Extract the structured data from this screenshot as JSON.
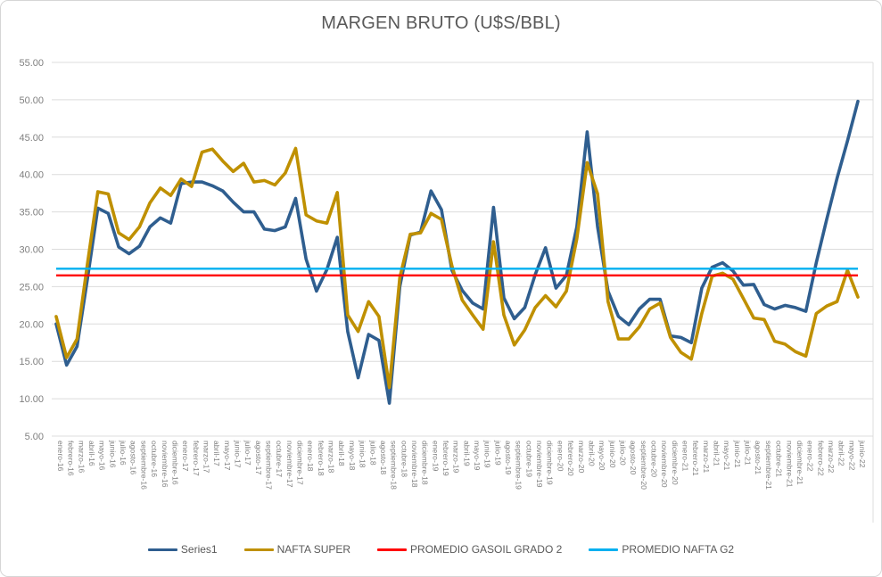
{
  "chart": {
    "title": "MARGEN BRUTO (U$S/BBL)"
  },
  "chart_data": {
    "type": "line",
    "title": "MARGEN BRUTO (U$S/BBL)",
    "xlabel": "",
    "ylabel": "",
    "ylim": [
      5,
      55
    ],
    "ytick_step": 5,
    "ytick_decimals": 2,
    "grid": "horizontal",
    "legend_position": "bottom",
    "axis_text_color": "#7f7f7f",
    "title_color": "#595959",
    "gridline_color": "#dcdcdc",
    "x": [
      "enero-16",
      "febrero-16",
      "marzo-16",
      "abril-16",
      "mayo-16",
      "junio-16",
      "julio-16",
      "agosto-16",
      "septiembre-16",
      "octubre-16",
      "noviembre-16",
      "diciembre-16",
      "enero-17",
      "febrero-17",
      "marzo-17",
      "abril-17",
      "mayo-17",
      "junio-17",
      "julio-17",
      "agosto-17",
      "septiembre-17",
      "octubre-17",
      "noviembre-17",
      "diciembre-17",
      "enero-18",
      "febrero-18",
      "marzo-18",
      "abril-18",
      "mayo-18",
      "junio-18",
      "julio-18",
      "agosto-18",
      "septiembre-18",
      "octubre-18",
      "noviembre-18",
      "diciembre-18",
      "enero-19",
      "febrero-19",
      "marzo-19",
      "abril-19",
      "mayo-19",
      "junio-19",
      "julio-19",
      "agosto-19",
      "septiembre-19",
      "octubre-19",
      "noviembre-19",
      "diciembre-19",
      "enero-20",
      "febrero-20",
      "marzo-20",
      "abril-20",
      "mayo-20",
      "junio-20",
      "julio-20",
      "agosto-20",
      "septiembre-20",
      "octubre-20",
      "noviembre-20",
      "diciembre-20",
      "enero-21",
      "febrero-21",
      "marzo-21",
      "abril-21",
      "mayo-21",
      "junio-21",
      "julio-21",
      "agosto-21",
      "septiembre-21",
      "octubre-21",
      "noviembre-21",
      "diciembre-21",
      "enero-22",
      "febrero-22",
      "marzo-22",
      "abril-22",
      "mayo-22",
      "junio-22"
    ],
    "series": [
      {
        "name": "Series1",
        "type": "line",
        "color": "#2f5e8f",
        "width": 3.6,
        "values": [
          20.0,
          14.5,
          17.0,
          26.0,
          35.5,
          34.8,
          30.3,
          29.4,
          30.4,
          33.0,
          34.2,
          33.5,
          38.8,
          39.0,
          39.0,
          38.5,
          37.8,
          36.3,
          35.0,
          35.0,
          32.7,
          32.5,
          33.0,
          36.8,
          28.7,
          24.4,
          27.3,
          31.6,
          19.0,
          12.8,
          18.6,
          17.8,
          9.4,
          25.0,
          31.9,
          32.3,
          37.8,
          35.3,
          27.2,
          24.5,
          22.8,
          22.0,
          35.6,
          23.5,
          20.7,
          22.2,
          26.6,
          30.2,
          24.8,
          26.5,
          33.0,
          45.7,
          33.0,
          24.4,
          21.0,
          19.9,
          22.0,
          23.3,
          23.3,
          18.4,
          18.2,
          17.5,
          24.8,
          27.6,
          28.2,
          27.1,
          25.2,
          25.3,
          22.6,
          22.0,
          22.5,
          22.2,
          21.7,
          28.2,
          34.0,
          39.5,
          44.5,
          49.8
        ]
      },
      {
        "name": "NAFTA SUPER",
        "type": "line",
        "color": "#bf9000",
        "width": 3.6,
        "values": [
          21.0,
          15.5,
          18.0,
          28.0,
          37.7,
          37.4,
          32.2,
          31.3,
          33.0,
          36.2,
          38.2,
          37.2,
          39.4,
          38.4,
          43.0,
          43.4,
          41.8,
          40.4,
          41.5,
          39.0,
          39.2,
          38.6,
          40.2,
          43.5,
          34.6,
          33.8,
          33.5,
          37.6,
          21.2,
          19.0,
          23.0,
          21.0,
          11.5,
          26.2,
          32.0,
          32.2,
          34.8,
          34.0,
          27.8,
          23.2,
          21.2,
          19.3,
          31.0,
          21.2,
          17.2,
          19.2,
          22.2,
          23.8,
          22.3,
          24.4,
          31.4,
          41.6,
          37.4,
          23.0,
          18.0,
          18.0,
          19.6,
          22.0,
          22.8,
          18.2,
          16.2,
          15.3,
          21.4,
          26.4,
          26.8,
          26.0,
          23.4,
          20.8,
          20.6,
          17.7,
          17.3,
          16.3,
          15.7,
          21.4,
          22.4,
          23.0,
          27.2,
          23.6
        ]
      },
      {
        "name": "PROMEDIO GASOIL GRADO 2",
        "type": "hline",
        "color": "#ff0000",
        "width": 2.4,
        "value": 26.5
      },
      {
        "name": "PROMEDIO NAFTA G2",
        "type": "hline",
        "color": "#00b0f0",
        "width": 2.4,
        "value": 27.4
      }
    ]
  }
}
